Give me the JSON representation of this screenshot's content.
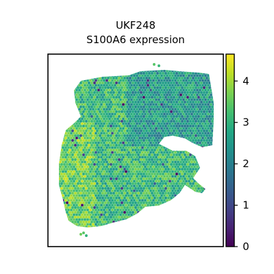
{
  "chart_data": {
    "type": "heatmap",
    "title_line1": "UKF248",
    "title_line2": "S100A6 expression",
    "xlabel": "",
    "ylabel": "",
    "colormap": "viridis",
    "colorbar": {
      "range": [
        0,
        4.65
      ],
      "ticks": [
        "0",
        "1",
        "2",
        "3",
        "4"
      ],
      "tick_values": [
        0,
        1,
        2,
        3,
        4
      ]
    },
    "axis_ticks_visible": false,
    "grid": false,
    "typical_value": 3.1,
    "regions": [
      {
        "name": "upper-right lobe",
        "mean_value": 2.5
      },
      {
        "name": "left lobe",
        "mean_value": 3.6
      },
      {
        "name": "lower middle",
        "mean_value": 3.2
      }
    ]
  }
}
